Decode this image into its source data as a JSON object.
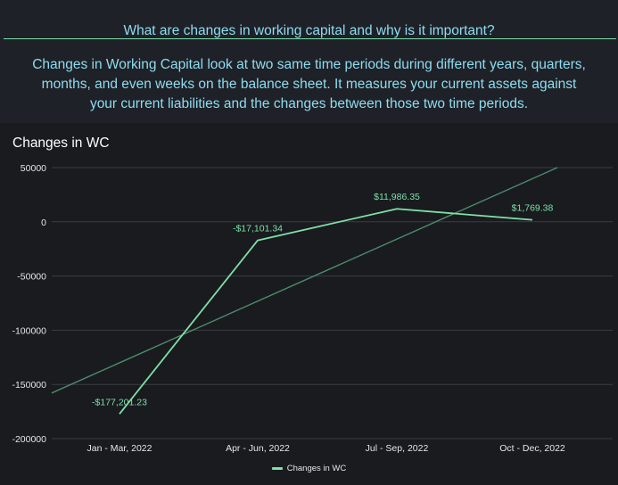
{
  "faq": {
    "title": "What are changes in working capital and why is it important?",
    "body_lines": [
      "Changes in Working Capital look at two same time periods during different years, quarters,",
      "months, and even weeks on the balance sheet. It measures your current assets against",
      "your current liabilities and the changes between those two time periods."
    ]
  },
  "colors": {
    "background": "#1e2127",
    "panel": "#191b1f",
    "heading_text": "#8fdcf0",
    "accent": "#7fe0a8",
    "trendline": "#4e8a6a",
    "gridline": "#3a3d43"
  },
  "chart_data": {
    "type": "line",
    "title": "Changes in WC",
    "categories": [
      "Jan - Mar, 2022",
      "Apr - Jun, 2022",
      "Jul - Sep, 2022",
      "Oct - Dec, 2022"
    ],
    "series": [
      {
        "name": "Changes in WC",
        "values": [
          -177201.23,
          -17101.34,
          11986.35,
          1769.38
        ],
        "labels": [
          "-$177,201.23",
          "-$17,101.34",
          "$11,986.35",
          "$1,769.38"
        ],
        "color": "#7fe0a8"
      }
    ],
    "trendline": {
      "shown": true,
      "style": "linear"
    },
    "y_ticks": [
      "50000",
      "0",
      "-50000",
      "-100000",
      "-150000",
      "-200000"
    ],
    "ylim": [
      -200000,
      50000
    ],
    "grid": true,
    "legend": "bottom-center"
  }
}
